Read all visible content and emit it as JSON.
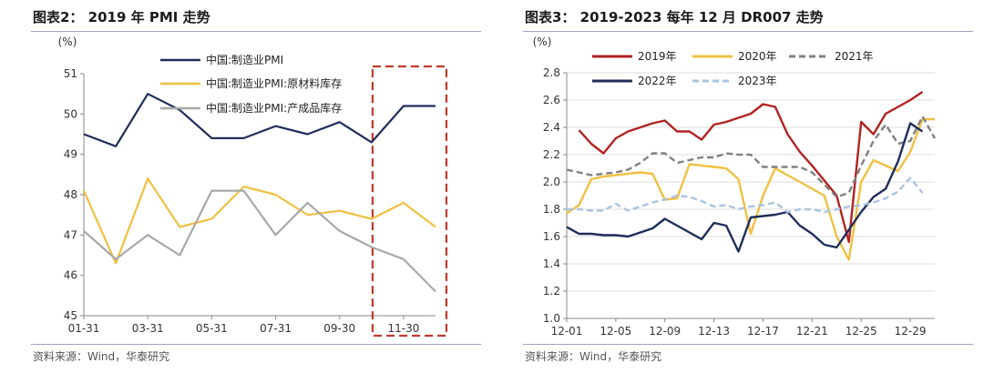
{
  "left_panel": {
    "title": "图表2：  2019 年 PMI 走势",
    "source": "资料来源：Wind，华泰研究"
  },
  "right_panel": {
    "title": "图表3：  2019-2023 每年 12 月 DR007 走势",
    "source": "资料来源：Wind，华泰研究"
  },
  "chart_data": [
    {
      "type": "line",
      "title": "2019 年 PMI 走势",
      "ylabel": "(%)",
      "ylim": [
        45,
        51
      ],
      "yticks": [
        45,
        46,
        47,
        48,
        49,
        50,
        51
      ],
      "x": [
        "01-31",
        "02-28",
        "03-31",
        "04-30",
        "05-31",
        "06-30",
        "07-31",
        "08-31",
        "09-30",
        "10-31",
        "11-30",
        "12-31"
      ],
      "xtick_labels": [
        "01-31",
        "03-31",
        "05-31",
        "07-31",
        "09-30",
        "11-30"
      ],
      "legend_position": "top-center",
      "series": [
        {
          "name": "中国:制造业PMI",
          "color": "#1f2d5a",
          "dash": "none",
          "values": [
            49.5,
            49.2,
            50.5,
            50.1,
            49.4,
            49.4,
            49.7,
            49.5,
            49.8,
            49.3,
            50.2,
            50.2
          ]
        },
        {
          "name": "中国:制造业PMI:原材料库存",
          "color": "#f0c040",
          "dash": "none",
          "values": [
            48.1,
            46.3,
            48.4,
            47.2,
            47.4,
            48.2,
            48.0,
            47.5,
            47.6,
            47.4,
            47.8,
            47.2
          ]
        },
        {
          "name": "中国:制造业PMI:产成品库存",
          "color": "#a8a8a8",
          "dash": "none",
          "values": [
            47.1,
            46.4,
            47.0,
            46.5,
            48.1,
            48.1,
            47.0,
            47.8,
            47.1,
            46.7,
            46.4,
            45.6
          ]
        }
      ],
      "highlight": {
        "from": "11-30",
        "to": "12-31",
        "color": "#c0392b"
      }
    },
    {
      "type": "line",
      "title": "2019-2023 每年 12 月 DR007 走势",
      "ylabel": "(%)",
      "ylim": [
        1.0,
        2.8
      ],
      "yticks": [
        1.0,
        1.2,
        1.4,
        1.6,
        1.8,
        2.0,
        2.2,
        2.4,
        2.6,
        2.8
      ],
      "x": [
        "12-01",
        "12-02",
        "12-03",
        "12-04",
        "12-05",
        "12-06",
        "12-07",
        "12-08",
        "12-09",
        "12-10",
        "12-11",
        "12-12",
        "12-13",
        "12-14",
        "12-15",
        "12-16",
        "12-17",
        "12-18",
        "12-19",
        "12-20",
        "12-21",
        "12-22",
        "12-23",
        "12-24",
        "12-25",
        "12-26",
        "12-27",
        "12-28",
        "12-29",
        "12-30",
        "12-31"
      ],
      "xtick_labels": [
        "12-01",
        "12-05",
        "12-09",
        "12-13",
        "12-17",
        "12-21",
        "12-25",
        "12-29"
      ],
      "legend_position": "top",
      "series": [
        {
          "name": "2019年",
          "color": "#b22222",
          "dash": "none",
          "values": [
            null,
            2.38,
            2.28,
            2.21,
            2.32,
            2.37,
            2.4,
            2.43,
            2.45,
            2.37,
            2.37,
            2.31,
            2.42,
            2.44,
            2.47,
            2.5,
            2.57,
            2.55,
            2.35,
            2.22,
            2.12,
            2.01,
            1.9,
            1.56,
            2.44,
            2.35,
            2.5,
            2.55,
            2.6,
            2.66,
            null
          ]
        },
        {
          "name": "2020年",
          "color": "#f0c040",
          "dash": "none",
          "values": [
            1.77,
            1.83,
            2.02,
            2.04,
            2.05,
            2.06,
            2.07,
            2.06,
            1.87,
            1.88,
            2.13,
            2.12,
            2.11,
            2.1,
            2.02,
            1.62,
            1.9,
            2.1,
            2.05,
            2.0,
            1.95,
            1.9,
            1.6,
            1.43,
            2.0,
            2.16,
            2.12,
            2.08,
            2.22,
            2.46,
            2.46
          ]
        },
        {
          "name": "2021年",
          "color": "#808080",
          "dash": "7,4",
          "values": [
            2.09,
            2.07,
            2.05,
            2.06,
            2.07,
            2.09,
            2.14,
            2.21,
            2.21,
            2.14,
            2.16,
            2.18,
            2.18,
            2.21,
            2.2,
            2.2,
            2.11,
            2.11,
            2.11,
            2.11,
            2.07,
            1.98,
            1.89,
            1.92,
            2.12,
            2.3,
            2.42,
            2.28,
            2.3,
            2.48,
            2.32
          ]
        },
        {
          "name": "2022年",
          "color": "#1f2d5a",
          "dash": "none",
          "values": [
            1.67,
            1.62,
            1.62,
            1.61,
            1.61,
            1.6,
            1.63,
            1.66,
            1.73,
            1.68,
            1.63,
            1.58,
            1.7,
            1.68,
            1.49,
            1.74,
            1.75,
            1.76,
            1.78,
            1.68,
            1.62,
            1.54,
            1.52,
            1.65,
            1.78,
            1.89,
            1.95,
            2.15,
            2.43,
            2.37,
            null
          ]
        },
        {
          "name": "2023年",
          "color": "#a8c4e0",
          "dash": "7,4",
          "values": [
            1.8,
            1.8,
            1.79,
            1.79,
            1.84,
            1.79,
            1.82,
            1.85,
            1.87,
            1.9,
            1.89,
            1.86,
            1.82,
            1.83,
            1.8,
            1.82,
            1.83,
            1.85,
            1.78,
            1.8,
            1.8,
            1.78,
            1.8,
            1.82,
            1.83,
            1.85,
            1.88,
            1.93,
            2.03,
            1.92,
            null
          ]
        }
      ]
    }
  ]
}
